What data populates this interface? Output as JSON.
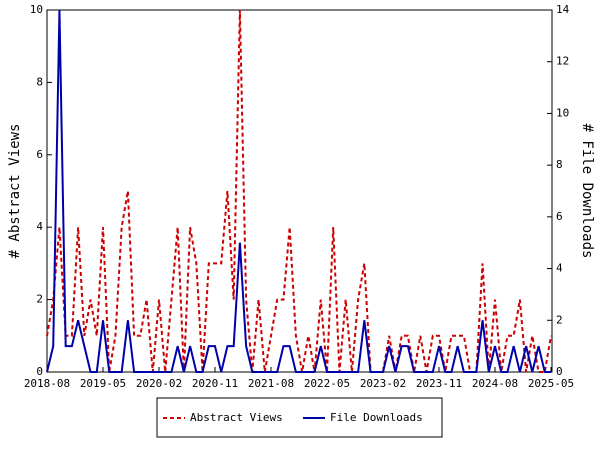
{
  "chart_data": {
    "type": "line",
    "x": [
      "2018-08",
      "2018-09",
      "2018-10",
      "2018-11",
      "2018-12",
      "2019-01",
      "2019-02",
      "2019-03",
      "2019-04",
      "2019-05",
      "2019-06",
      "2019-07",
      "2019-08",
      "2019-09",
      "2019-10",
      "2019-11",
      "2019-12",
      "2020-01",
      "2020-02",
      "2020-03",
      "2020-04",
      "2020-05",
      "2020-06",
      "2020-07",
      "2020-08",
      "2020-09",
      "2020-10",
      "2020-11",
      "2020-12",
      "2021-01",
      "2021-02",
      "2021-03",
      "2021-04",
      "2021-05",
      "2021-06",
      "2021-07",
      "2021-08",
      "2021-09",
      "2021-10",
      "2021-11",
      "2021-12",
      "2022-01",
      "2022-02",
      "2022-03",
      "2022-04",
      "2022-05",
      "2022-06",
      "2022-07",
      "2022-08",
      "2022-09",
      "2022-10",
      "2022-11",
      "2022-12",
      "2023-01",
      "2023-02",
      "2023-03",
      "2023-04",
      "2023-05",
      "2023-06",
      "2023-07",
      "2023-08",
      "2023-09",
      "2023-10",
      "2023-11",
      "2023-12",
      "2024-01",
      "2024-02",
      "2024-03",
      "2024-04",
      "2024-05",
      "2024-06",
      "2024-07",
      "2024-08",
      "2024-09",
      "2024-10",
      "2024-11",
      "2024-12",
      "2025-01",
      "2025-02",
      "2025-03",
      "2025-04",
      "2025-05"
    ],
    "xticks": [
      "2018-08",
      "2019-05",
      "2020-02",
      "2020-11",
      "2021-08",
      "2022-05",
      "2023-02",
      "2023-11",
      "2024-08",
      "2025-05"
    ],
    "ylabel": "# Abstract Views",
    "y2label": "# File Downloads",
    "ylim": [
      0,
      10
    ],
    "yticks": [
      0,
      2,
      4,
      6,
      8,
      10
    ],
    "y2lim": [
      0,
      14
    ],
    "y2ticks": [
      0,
      2,
      4,
      6,
      8,
      10,
      12,
      14
    ],
    "series": [
      {
        "name": "Abstract Views",
        "color": "#cc0000",
        "dashed": true,
        "values": [
          1,
          2,
          4,
          1,
          1,
          4,
          1,
          2,
          1,
          4,
          0,
          1,
          4,
          5,
          1,
          1,
          2,
          0,
          2,
          0,
          2,
          4,
          0,
          4,
          3,
          0,
          3,
          3,
          3,
          5,
          2,
          10,
          2,
          0,
          2,
          0,
          1,
          2,
          2,
          4,
          1,
          0,
          1,
          0,
          2,
          0,
          4,
          0,
          2,
          0,
          2,
          3,
          0,
          0,
          0,
          1,
          0,
          1,
          1,
          0,
          1,
          0,
          1,
          1,
          0,
          1,
          1,
          1,
          0,
          0,
          3,
          0,
          2,
          0,
          1,
          1,
          2,
          0,
          1,
          0,
          0,
          1
        ]
      },
      {
        "name": "File Downloads",
        "color": "#0000aa",
        "axis": "y2",
        "values": [
          0,
          1,
          14,
          1,
          1,
          2,
          1,
          0,
          0,
          2,
          0,
          0,
          0,
          2,
          0,
          0,
          0,
          0,
          0,
          0,
          0,
          1,
          0,
          1,
          0,
          0,
          1,
          1,
          0,
          1,
          1,
          5,
          1,
          0,
          0,
          0,
          0,
          0,
          1,
          1,
          0,
          0,
          0,
          0,
          1,
          0,
          0,
          0,
          0,
          0,
          0,
          2,
          0,
          0,
          0,
          1,
          0,
          1,
          1,
          0,
          0,
          0,
          0,
          1,
          0,
          0,
          1,
          0,
          0,
          0,
          2,
          0,
          1,
          0,
          0,
          1,
          0,
          1,
          0,
          1,
          0,
          0
        ]
      }
    ]
  }
}
